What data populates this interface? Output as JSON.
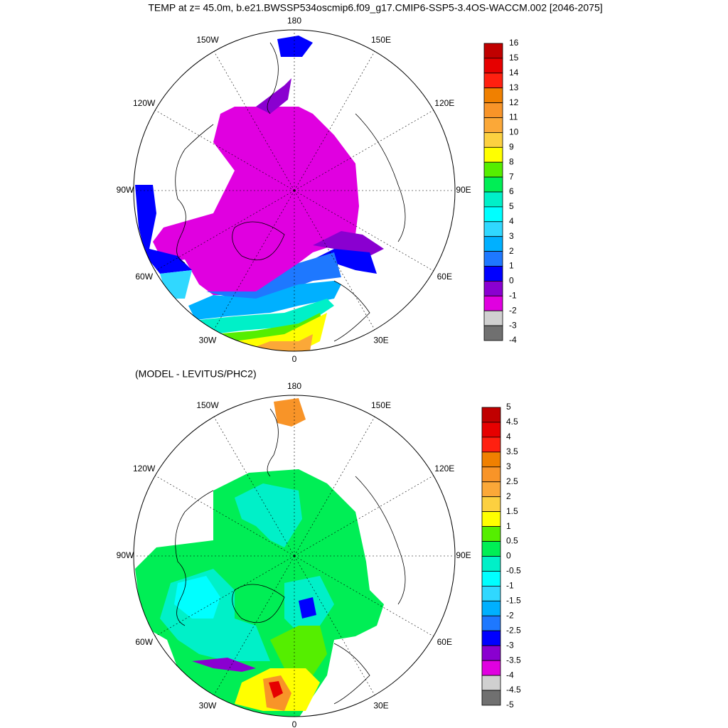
{
  "title": "TEMP at z=  45.0m, b.e21.BWSSP534oscmip6.f09_g17.CMIP6-SSP5-3.4OS-WACCM.002 [2046-2075]",
  "panels": [
    {
      "lon_labels": [
        "180",
        "150E",
        "120E",
        "90E",
        "60E",
        "30E",
        "0",
        "30W",
        "60W",
        "90W",
        "120W",
        "150W"
      ],
      "colorbar": {
        "levels": [
          16,
          15,
          14,
          13,
          12,
          11,
          10,
          9,
          8,
          7,
          6,
          5,
          4,
          3,
          2,
          1,
          0,
          -1,
          -2,
          -3,
          -4
        ],
        "colors": [
          "#c00000",
          "#e60000",
          "#ff2010",
          "#f08000",
          "#f89428",
          "#fba838",
          "#fcd040",
          "#ffff00",
          "#55ee00",
          "#00ee55",
          "#00f0c8",
          "#00ffff",
          "#30d8ff",
          "#00b0ff",
          "#1e78ff",
          "#0000ff",
          "#8a00d0",
          "#e000e0",
          "#d0d0d0",
          "#707070"
        ]
      }
    },
    {
      "subtitle": "(MODEL - LEVITUS/PHC2)",
      "lon_labels": [
        "180",
        "150E",
        "120E",
        "90E",
        "60E",
        "30E",
        "0",
        "30W",
        "60W",
        "90W",
        "120W",
        "150W"
      ],
      "colorbar": {
        "levels": [
          5,
          4.5,
          4,
          3.5,
          3,
          2.5,
          2,
          1.5,
          1,
          0.5,
          0,
          -0.5,
          -1,
          -1.5,
          -2,
          -2.5,
          -3,
          -3.5,
          -4,
          -4.5,
          -5
        ],
        "colors": [
          "#c00000",
          "#e60000",
          "#ff2010",
          "#f08000",
          "#f89428",
          "#fba838",
          "#fcd040",
          "#ffff00",
          "#55ee00",
          "#00ee55",
          "#00f0c8",
          "#00ffff",
          "#30d8ff",
          "#00b0ff",
          "#1e78ff",
          "#0000ff",
          "#8a00d0",
          "#e000e0",
          "#d0d0d0",
          "#707070"
        ]
      }
    }
  ]
}
